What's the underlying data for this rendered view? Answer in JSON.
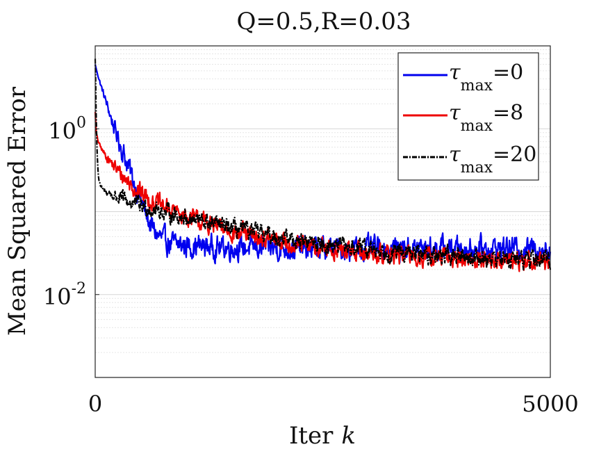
{
  "chart_data": {
    "type": "line",
    "title": "Q=0.5,R=0.03",
    "xlabel": "Iter",
    "xlabel_var": "k",
    "ylabel": "Mean Squared Error",
    "yscale": "log",
    "xlim": [
      0,
      5000
    ],
    "ylim": [
      0.001,
      10
    ],
    "x_ticks": [
      0,
      5000
    ],
    "x_tick_labels": [
      "0",
      "5000"
    ],
    "y_ticks": [
      1,
      0.01
    ],
    "y_tick_labels": [
      {
        "base": "10",
        "exp": "0"
      },
      {
        "base": "10",
        "exp": "-2"
      }
    ],
    "grid": true,
    "legend": {
      "position": "top-right",
      "entries": [
        {
          "symbol": "τ",
          "sub": "max",
          "suffix": "=0"
        },
        {
          "symbol": "τ",
          "sub": "max",
          "suffix": "=8"
        },
        {
          "symbol": "τ",
          "sub": "max",
          "suffix": "=20"
        }
      ]
    },
    "series": [
      {
        "name": "τmax=0",
        "color": "#0000ee",
        "style": "solid",
        "noise": 0.11,
        "x": [
          0,
          20,
          60,
          120,
          200,
          300,
          400,
          500,
          560,
          600,
          650,
          700,
          760,
          800,
          900,
          1000,
          1200,
          1400,
          1600,
          1800,
          2000,
          2200,
          2400,
          2600,
          2800,
          3000,
          3500,
          4000,
          4500,
          5000
        ],
        "y": [
          6.0,
          4.8,
          3.4,
          2.1,
          1.1,
          0.55,
          0.27,
          0.14,
          0.092,
          0.072,
          0.058,
          0.05,
          0.045,
          0.042,
          0.04,
          0.039,
          0.038,
          0.037,
          0.037,
          0.037,
          0.036,
          0.036,
          0.036,
          0.036,
          0.036,
          0.036,
          0.036,
          0.036,
          0.036,
          0.036
        ]
      },
      {
        "name": "τmax=8",
        "color": "#ee0000",
        "style": "solid",
        "noise": 0.09,
        "x": [
          0,
          10,
          30,
          60,
          100,
          200,
          300,
          400,
          500,
          600,
          800,
          1000,
          1200,
          1400,
          1600,
          1800,
          2000,
          2200,
          2400,
          2600,
          2800,
          3000,
          3500,
          4000,
          4500,
          5000
        ],
        "y": [
          1.6,
          0.92,
          0.72,
          0.6,
          0.5,
          0.36,
          0.27,
          0.21,
          0.17,
          0.14,
          0.107,
          0.088,
          0.073,
          0.062,
          0.054,
          0.048,
          0.044,
          0.04,
          0.037,
          0.035,
          0.033,
          0.032,
          0.029,
          0.027,
          0.026,
          0.025
        ]
      },
      {
        "name": "τmax=20",
        "color": "#000000",
        "style": "dashdot",
        "noise": 0.08,
        "x": [
          0,
          5,
          10,
          20,
          30,
          40,
          60,
          100,
          200,
          300,
          400,
          600,
          800,
          1000,
          1200,
          1400,
          1600,
          1800,
          2000,
          2200,
          2400,
          2600,
          2800,
          3000,
          3500,
          4000,
          4500,
          5000
        ],
        "y": [
          7.0,
          4.0,
          1.5,
          0.55,
          0.32,
          0.24,
          0.2,
          0.18,
          0.155,
          0.14,
          0.128,
          0.11,
          0.096,
          0.085,
          0.075,
          0.067,
          0.06,
          0.055,
          0.05,
          0.046,
          0.042,
          0.039,
          0.037,
          0.035,
          0.031,
          0.029,
          0.027,
          0.026
        ]
      }
    ]
  }
}
